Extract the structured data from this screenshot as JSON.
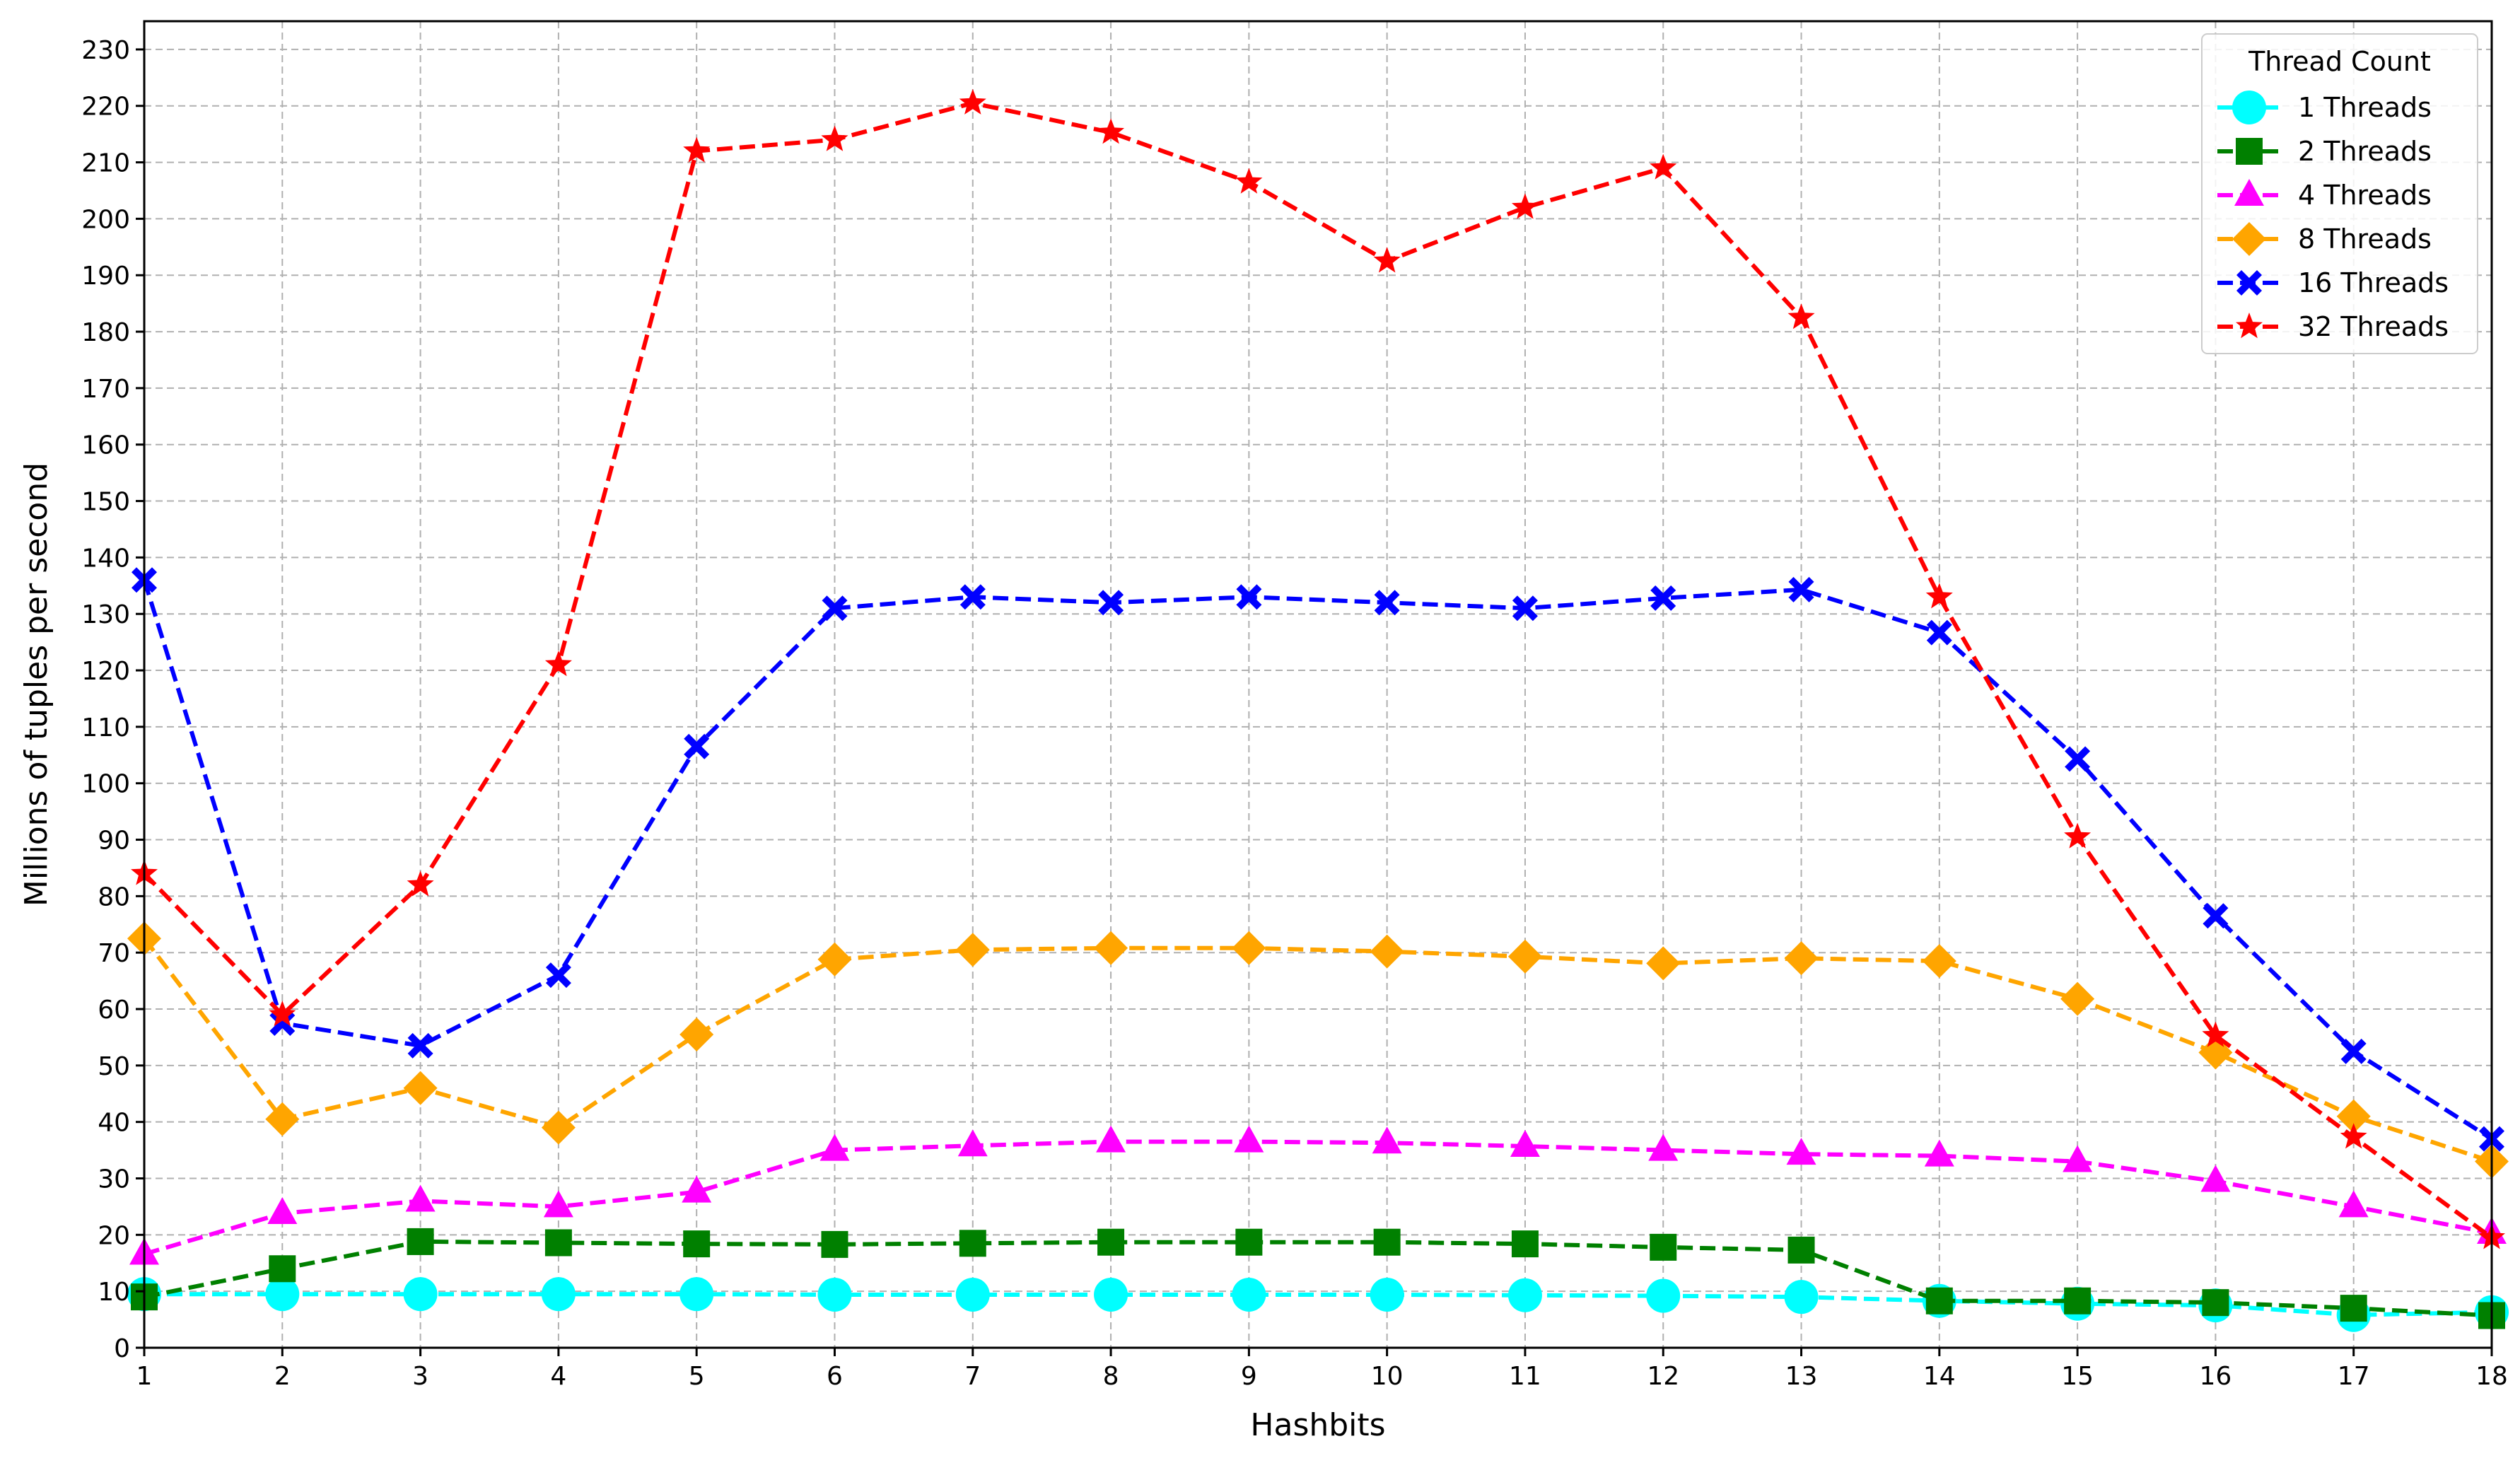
{
  "chart_data": {
    "type": "line",
    "xlabel": "Hashbits",
    "ylabel": "Millions of tuples per second",
    "x": [
      1,
      2,
      3,
      4,
      5,
      6,
      7,
      8,
      9,
      10,
      11,
      12,
      13,
      14,
      15,
      16,
      17,
      18
    ],
    "xlim": [
      1,
      18
    ],
    "ylim": [
      0,
      235
    ],
    "x_ticks": [
      1,
      2,
      3,
      4,
      5,
      6,
      7,
      8,
      9,
      10,
      11,
      12,
      13,
      14,
      15,
      16,
      17,
      18
    ],
    "y_ticks": [
      0,
      10,
      20,
      30,
      40,
      50,
      60,
      70,
      80,
      90,
      100,
      110,
      120,
      130,
      140,
      150,
      160,
      170,
      180,
      190,
      200,
      210,
      220,
      230
    ],
    "grid": true,
    "legend": {
      "title": "Thread Count",
      "placement": "top-right"
    },
    "series": [
      {
        "name": "1 Threads",
        "color": "#00ffff",
        "marker": "circle",
        "values": [
          9.5,
          9.5,
          9.5,
          9.5,
          9.5,
          9.4,
          9.4,
          9.4,
          9.4,
          9.4,
          9.3,
          9.2,
          9.0,
          8.3,
          7.8,
          7.5,
          5.8,
          6.3
        ]
      },
      {
        "name": "2 Threads",
        "color": "#008000",
        "marker": "square",
        "values": [
          9.0,
          14.0,
          18.8,
          18.6,
          18.4,
          18.3,
          18.5,
          18.7,
          18.7,
          18.7,
          18.4,
          17.8,
          17.3,
          8.3,
          8.3,
          8.0,
          7.0,
          5.7
        ]
      },
      {
        "name": "4 Threads",
        "color": "#ff00ff",
        "marker": "triangle",
        "values": [
          16.6,
          23.8,
          26.0,
          25.0,
          27.6,
          35.0,
          35.8,
          36.5,
          36.5,
          36.3,
          35.7,
          35.0,
          34.3,
          34.0,
          33.0,
          29.5,
          25.0,
          20.3
        ]
      },
      {
        "name": "8 Threads",
        "color": "#ffa500",
        "marker": "diamond",
        "values": [
          72.5,
          40.5,
          46.0,
          39.0,
          55.5,
          68.8,
          70.5,
          70.8,
          70.8,
          70.2,
          69.3,
          68.1,
          69.0,
          68.5,
          61.8,
          52.3,
          41.0,
          33.0
        ]
      },
      {
        "name": "16 Threads",
        "color": "#0000ff",
        "marker": "x",
        "values": [
          136.0,
          57.5,
          53.5,
          66.0,
          106.5,
          131.0,
          133.0,
          132.0,
          133.0,
          132.0,
          131.0,
          132.8,
          134.3,
          126.7,
          104.3,
          76.5,
          52.5,
          37.0
        ]
      },
      {
        "name": "32 Threads",
        "color": "#ff0000",
        "marker": "star",
        "values": [
          84.0,
          59.0,
          82.0,
          121.0,
          212.0,
          214.0,
          220.5,
          215.3,
          206.5,
          192.5,
          202.0,
          209.0,
          182.5,
          133.0,
          90.5,
          55.3,
          37.3,
          19.5
        ]
      }
    ]
  }
}
